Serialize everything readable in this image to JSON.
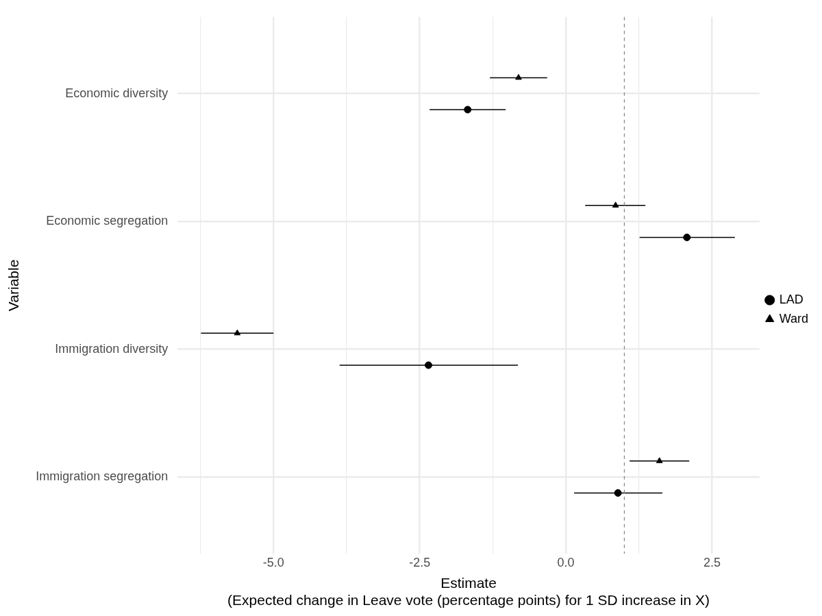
{
  "chart_data": {
    "type": "scatter",
    "orientation": "horizontal",
    "xlabel": "Estimate\n(Expected change in Leave vote (percentage points) for 1 SD increase in X)",
    "ylabel": "Variable",
    "categories": [
      "Economic diversity",
      "Economic segregation",
      "Immigration diversity",
      "Immigration segregation"
    ],
    "series": [
      {
        "name": "LAD",
        "color": "#000000",
        "marker": "circle",
        "values": [
          -1.68,
          2.07,
          -2.35,
          0.89
        ],
        "errors": [
          [
            -2.33,
            -1.03
          ],
          [
            1.26,
            2.89
          ],
          [
            -3.87,
            -0.82
          ],
          [
            0.14,
            1.65
          ]
        ]
      },
      {
        "name": "Ward",
        "color": "#000000",
        "marker": "triangle",
        "values": [
          -0.81,
          0.85,
          -5.62,
          1.6
        ],
        "errors": [
          [
            -1.3,
            -0.32
          ],
          [
            0.33,
            1.36
          ],
          [
            -6.24,
            -5.0
          ],
          [
            1.09,
            2.11
          ]
        ]
      }
    ],
    "xlim": [
      -6.64,
      3.31
    ],
    "xticks": [
      {
        "value": -6.25,
        "label": null
      },
      {
        "value": -5,
        "label": "-5.0"
      },
      {
        "value": -3.75,
        "label": null
      },
      {
        "value": -2.5,
        "label": "-2.5"
      },
      {
        "value": -1.25,
        "label": null
      },
      {
        "value": 0,
        "label": "0.0"
      },
      {
        "value": 1.25,
        "label": null
      },
      {
        "value": 2.5,
        "label": "2.5"
      }
    ],
    "ref_lines": [
      {
        "axis": "x",
        "value": 1,
        "color": "#888888",
        "line_style": "dashed"
      }
    ],
    "grid": true,
    "legend": "right"
  }
}
